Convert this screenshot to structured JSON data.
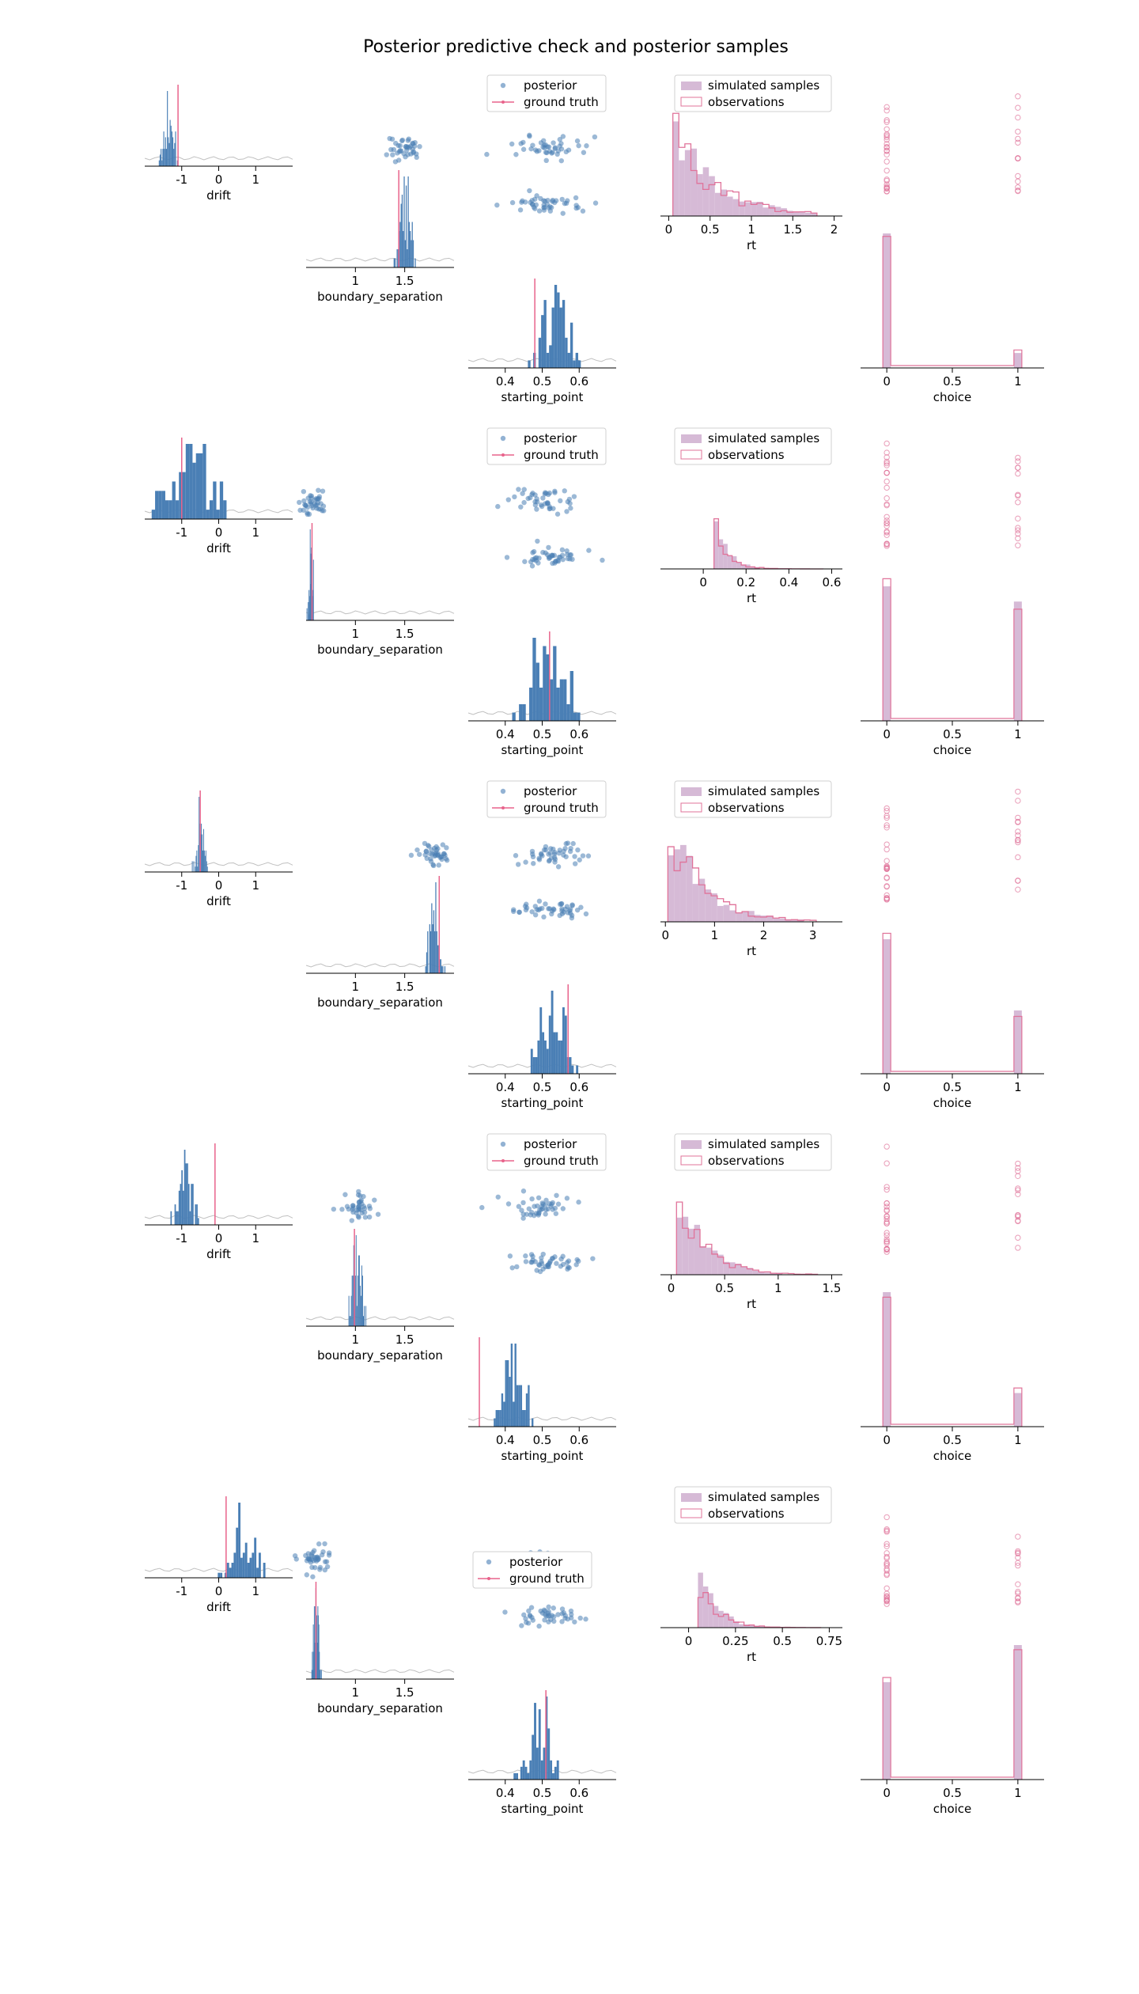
{
  "chart_data": {
    "type": "posterior-predictive-grid",
    "title": "Posterior predictive check and posterior samples",
    "colors": {
      "posterior": "#4a7fb5",
      "ground_truth": "#e8638b",
      "simulated": "#d6bad6",
      "observations": "#e0739a",
      "prior_line": "#c0c0c0"
    },
    "axis_labels": {
      "drift": "drift",
      "boundary_separation": "boundary_separation",
      "starting_point": "starting_point",
      "rt": "rt",
      "choice": "choice"
    },
    "legend_labels": {
      "posterior": "posterior",
      "ground_truth": "ground truth",
      "simulated": "simulated samples",
      "observations": "observations"
    },
    "ticks": {
      "drift": [
        "-1",
        "0",
        "1"
      ],
      "boundary_separation": [
        "1",
        "1.5"
      ],
      "starting_point": [
        "0.4",
        "0.5",
        "0.6"
      ],
      "choice": [
        "0",
        "0.5",
        "1"
      ]
    },
    "rows": [
      {
        "drift": {
          "mean": -1.35,
          "sd": 0.12,
          "truth": -1.1
        },
        "boundary_separation": {
          "mean": 1.5,
          "sd": 0.05,
          "truth": 1.44
        },
        "starting_point": {
          "mean": 0.54,
          "sd": 0.035,
          "truth": 0.48
        },
        "rt": {
          "xlim": [
            -0.1,
            2.1
          ],
          "ticks": [
            "0",
            "0.5",
            "1",
            "1.5",
            "2"
          ],
          "scale": 0.5
        },
        "choice": {
          "p_upper": 0.1,
          "obs_upper": 0.12
        },
        "legend_position": "upper"
      },
      {
        "drift": {
          "mean": -0.8,
          "sd": 0.45,
          "truth": -1.0
        },
        "boundary_separation": {
          "mean": 0.55,
          "sd": 0.02,
          "truth": 0.56
        },
        "starting_point": {
          "mean": 0.52,
          "sd": 0.045,
          "truth": 0.52
        },
        "rt": {
          "xlim": [
            -0.2,
            0.65
          ],
          "ticks": [
            "0",
            "0.2",
            "0.4",
            "0.6"
          ],
          "scale": 0.06
        },
        "choice": {
          "p_upper": 0.47,
          "obs_upper": 0.44
        },
        "legend_position": "upper"
      },
      {
        "drift": {
          "mean": -0.5,
          "sd": 0.1,
          "truth": -0.5
        },
        "boundary_separation": {
          "mean": 1.8,
          "sd": 0.05,
          "truth": 1.85
        },
        "starting_point": {
          "mean": 0.53,
          "sd": 0.03,
          "truth": 0.57
        },
        "rt": {
          "xlim": [
            -0.1,
            3.6
          ],
          "ticks": [
            "0",
            "1",
            "2",
            "3"
          ],
          "scale": 0.7
        },
        "choice": {
          "p_upper": 0.32,
          "obs_upper": 0.29
        },
        "legend_position": "upper"
      },
      {
        "drift": {
          "mean": -0.9,
          "sd": 0.18,
          "truth": -0.1
        },
        "boundary_separation": {
          "mean": 1.02,
          "sd": 0.04,
          "truth": 0.99
        },
        "starting_point": {
          "mean": 0.42,
          "sd": 0.025,
          "truth": 0.33
        },
        "rt": {
          "xlim": [
            -0.1,
            1.6
          ],
          "ticks": [
            "0",
            "0.5",
            "1",
            "1.5"
          ],
          "scale": 0.25
        },
        "choice": {
          "p_upper": 0.2,
          "obs_upper": 0.23
        },
        "legend_position": "upper"
      },
      {
        "drift": {
          "mean": 0.65,
          "sd": 0.3,
          "truth": 0.2
        },
        "boundary_separation": {
          "mean": 0.6,
          "sd": 0.025,
          "truth": 0.6
        },
        "starting_point": {
          "mean": 0.49,
          "sd": 0.03,
          "truth": 0.51
        },
        "rt": {
          "xlim": [
            -0.15,
            0.82
          ],
          "ticks": [
            "0",
            "0.25",
            "0.5",
            "0.75"
          ],
          "scale": 0.09
        },
        "choice": {
          "p_upper": 0.58,
          "obs_upper": 0.56
        },
        "legend_position": "middle"
      }
    ]
  }
}
